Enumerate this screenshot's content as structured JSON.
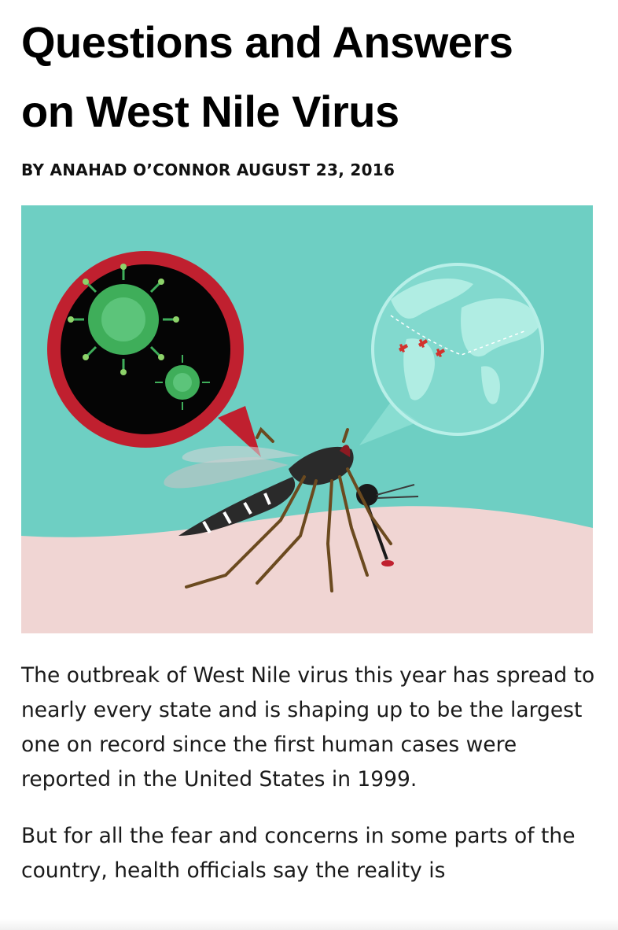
{
  "article": {
    "title_line1": "Questions and Answers",
    "title_line2": "on West Nile Virus",
    "byline": "BY ANAHAD O’CONNOR AUGUST 23, 2016",
    "paragraphs": [
      "The outbreak of West Nile virus this year has spread to nearly every state and is shaping up to be the largest one on record since the first human cases were reported in the United States in 1999.",
      "But for all the fear and concerns in some parts of the country, health officials say the reality is"
    ]
  },
  "illustration": {
    "subject": "mosquito-with-virus-and-globe",
    "colors": {
      "sky": "#6ecfc3",
      "skin": "#f0d5d3",
      "bubble_ring": "#c0202f",
      "bubble_fill": "#050505",
      "virus": "#3fae5a",
      "globe": "#9fe6dc",
      "marker": "#d2322d"
    }
  }
}
